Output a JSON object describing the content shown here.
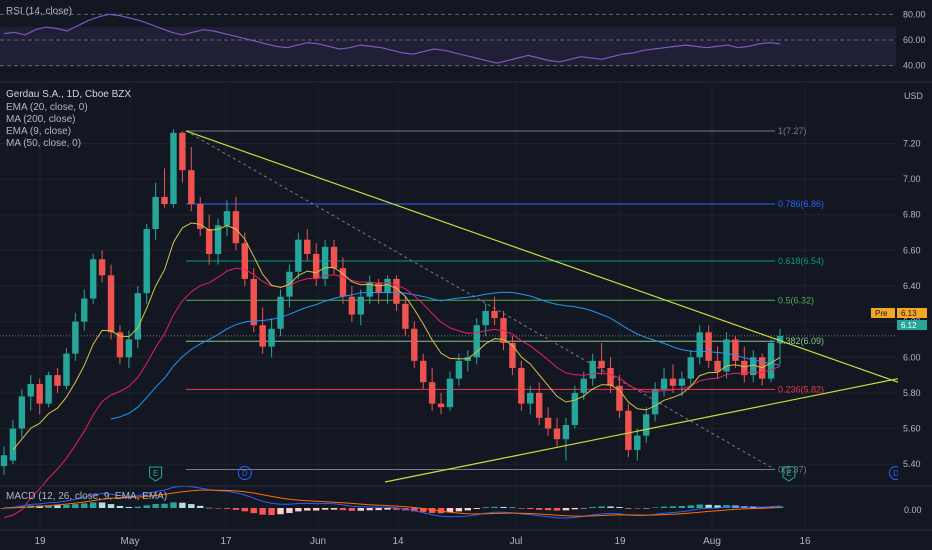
{
  "rsi": {
    "title": "RSI (14, close)",
    "levels": [
      80.0,
      60.0,
      40.0
    ],
    "tick_labels": [
      "80.00",
      "60.00",
      "40.00"
    ],
    "band": [
      40,
      70
    ],
    "ylim": [
      32,
      88
    ],
    "values": [
      65,
      66,
      64,
      68,
      70,
      69,
      67,
      71,
      75,
      78,
      80,
      79,
      77,
      75,
      72,
      69,
      66,
      64,
      66,
      68,
      67,
      65,
      63,
      61,
      59,
      57,
      55,
      54,
      56,
      58,
      57,
      55,
      53,
      54,
      56,
      55,
      54,
      52,
      50,
      49,
      51,
      53,
      52,
      50,
      48,
      46,
      44,
      42,
      44,
      46,
      48,
      46,
      44,
      43,
      45,
      47,
      46,
      45,
      47,
      49,
      50,
      52,
      53,
      54,
      55,
      56,
      55,
      54,
      55,
      56,
      54,
      55,
      57,
      58,
      57
    ]
  },
  "legend": {
    "symbol": "Gerdau S.A., 1D, Cboe BZX",
    "indicators": [
      "EMA (20, close, 0)",
      "MA (200, close)",
      "EMA (9, close)",
      "MA (50, close, 0)"
    ]
  },
  "currency": "USD",
  "badges": {
    "pre_label": "Pre",
    "pre_value": "6.13",
    "last_value": "6.12"
  },
  "chart_data": {
    "type": "candlestick",
    "ylim": [
      5.3,
      7.5
    ],
    "y_ticks": [
      "7.20",
      "7.00",
      "6.80",
      "6.60",
      "6.40",
      "6.20",
      "6.00",
      "5.80",
      "5.60",
      "5.40"
    ],
    "x_tick_labels": [
      "19",
      "May",
      "17",
      "Jun",
      "14",
      "Jul",
      "19",
      "Aug",
      "16"
    ],
    "candles": [
      {
        "o": 5.39,
        "h": 5.5,
        "l": 5.34,
        "c": 5.45
      },
      {
        "o": 5.42,
        "h": 5.65,
        "l": 5.4,
        "c": 5.6
      },
      {
        "o": 5.6,
        "h": 5.82,
        "l": 5.55,
        "c": 5.78
      },
      {
        "o": 5.78,
        "h": 5.9,
        "l": 5.7,
        "c": 5.85
      },
      {
        "o": 5.85,
        "h": 5.88,
        "l": 5.68,
        "c": 5.74
      },
      {
        "o": 5.74,
        "h": 5.92,
        "l": 5.72,
        "c": 5.9
      },
      {
        "o": 5.9,
        "h": 5.94,
        "l": 5.8,
        "c": 5.84
      },
      {
        "o": 5.84,
        "h": 6.05,
        "l": 5.82,
        "c": 6.02
      },
      {
        "o": 6.02,
        "h": 6.25,
        "l": 5.98,
        "c": 6.2
      },
      {
        "o": 6.2,
        "h": 6.38,
        "l": 6.15,
        "c": 6.33
      },
      {
        "o": 6.33,
        "h": 6.58,
        "l": 6.3,
        "c": 6.55
      },
      {
        "o": 6.55,
        "h": 6.6,
        "l": 6.42,
        "c": 6.46
      },
      {
        "o": 6.46,
        "h": 6.52,
        "l": 6.1,
        "c": 6.14
      },
      {
        "o": 6.14,
        "h": 6.18,
        "l": 5.96,
        "c": 6.0
      },
      {
        "o": 6.0,
        "h": 6.15,
        "l": 5.94,
        "c": 6.1
      },
      {
        "o": 6.1,
        "h": 6.4,
        "l": 6.05,
        "c": 6.36
      },
      {
        "o": 6.36,
        "h": 6.75,
        "l": 6.3,
        "c": 6.72
      },
      {
        "o": 6.72,
        "h": 6.98,
        "l": 6.66,
        "c": 6.9
      },
      {
        "o": 6.9,
        "h": 7.06,
        "l": 6.84,
        "c": 6.86
      },
      {
        "o": 6.86,
        "h": 7.28,
        "l": 6.84,
        "c": 7.26
      },
      {
        "o": 7.26,
        "h": 7.27,
        "l": 6.98,
        "c": 7.05
      },
      {
        "o": 7.05,
        "h": 7.18,
        "l": 6.82,
        "c": 6.86
      },
      {
        "o": 6.86,
        "h": 6.9,
        "l": 6.68,
        "c": 6.72
      },
      {
        "o": 6.72,
        "h": 6.8,
        "l": 6.52,
        "c": 6.58
      },
      {
        "o": 6.58,
        "h": 6.78,
        "l": 6.52,
        "c": 6.74
      },
      {
        "o": 6.74,
        "h": 6.88,
        "l": 6.68,
        "c": 6.82
      },
      {
        "o": 6.82,
        "h": 6.9,
        "l": 6.6,
        "c": 6.64
      },
      {
        "o": 6.64,
        "h": 6.7,
        "l": 6.4,
        "c": 6.44
      },
      {
        "o": 6.44,
        "h": 6.5,
        "l": 6.14,
        "c": 6.18
      },
      {
        "o": 6.18,
        "h": 6.28,
        "l": 6.02,
        "c": 6.06
      },
      {
        "o": 6.06,
        "h": 6.22,
        "l": 6.0,
        "c": 6.16
      },
      {
        "o": 6.16,
        "h": 6.38,
        "l": 6.12,
        "c": 6.34
      },
      {
        "o": 6.34,
        "h": 6.52,
        "l": 6.28,
        "c": 6.48
      },
      {
        "o": 6.48,
        "h": 6.7,
        "l": 6.44,
        "c": 6.66
      },
      {
        "o": 6.66,
        "h": 6.72,
        "l": 6.54,
        "c": 6.58
      },
      {
        "o": 6.58,
        "h": 6.64,
        "l": 6.4,
        "c": 6.44
      },
      {
        "o": 6.44,
        "h": 6.66,
        "l": 6.4,
        "c": 6.62
      },
      {
        "o": 6.62,
        "h": 6.66,
        "l": 6.46,
        "c": 6.5
      },
      {
        "o": 6.5,
        "h": 6.56,
        "l": 6.3,
        "c": 6.34
      },
      {
        "o": 6.34,
        "h": 6.4,
        "l": 6.2,
        "c": 6.24
      },
      {
        "o": 6.24,
        "h": 6.38,
        "l": 6.18,
        "c": 6.34
      },
      {
        "o": 6.34,
        "h": 6.46,
        "l": 6.3,
        "c": 6.42
      },
      {
        "o": 6.42,
        "h": 6.44,
        "l": 6.3,
        "c": 6.36
      },
      {
        "o": 6.36,
        "h": 6.46,
        "l": 6.3,
        "c": 6.44
      },
      {
        "o": 6.44,
        "h": 6.46,
        "l": 6.26,
        "c": 6.3
      },
      {
        "o": 6.3,
        "h": 6.34,
        "l": 6.12,
        "c": 6.16
      },
      {
        "o": 6.16,
        "h": 6.2,
        "l": 5.94,
        "c": 5.98
      },
      {
        "o": 5.98,
        "h": 6.02,
        "l": 5.82,
        "c": 5.86
      },
      {
        "o": 5.86,
        "h": 5.94,
        "l": 5.7,
        "c": 5.74
      },
      {
        "o": 5.74,
        "h": 5.8,
        "l": 5.68,
        "c": 5.72
      },
      {
        "o": 5.72,
        "h": 5.92,
        "l": 5.7,
        "c": 5.88
      },
      {
        "o": 5.88,
        "h": 6.02,
        "l": 5.84,
        "c": 5.98
      },
      {
        "o": 5.98,
        "h": 6.04,
        "l": 5.92,
        "c": 6.0
      },
      {
        "o": 6.0,
        "h": 6.22,
        "l": 5.96,
        "c": 6.18
      },
      {
        "o": 6.18,
        "h": 6.3,
        "l": 6.12,
        "c": 6.26
      },
      {
        "o": 6.26,
        "h": 6.34,
        "l": 6.18,
        "c": 6.22
      },
      {
        "o": 6.22,
        "h": 6.26,
        "l": 6.04,
        "c": 6.08
      },
      {
        "o": 6.08,
        "h": 6.12,
        "l": 5.9,
        "c": 5.94
      },
      {
        "o": 5.94,
        "h": 5.98,
        "l": 5.7,
        "c": 5.74
      },
      {
        "o": 5.74,
        "h": 5.84,
        "l": 5.68,
        "c": 5.8
      },
      {
        "o": 5.8,
        "h": 5.86,
        "l": 5.62,
        "c": 5.66
      },
      {
        "o": 5.66,
        "h": 5.72,
        "l": 5.56,
        "c": 5.6
      },
      {
        "o": 5.6,
        "h": 5.66,
        "l": 5.5,
        "c": 5.54
      },
      {
        "o": 5.54,
        "h": 5.66,
        "l": 5.42,
        "c": 5.62
      },
      {
        "o": 5.62,
        "h": 5.84,
        "l": 5.6,
        "c": 5.8
      },
      {
        "o": 5.8,
        "h": 5.92,
        "l": 5.76,
        "c": 5.88
      },
      {
        "o": 5.88,
        "h": 6.02,
        "l": 5.84,
        "c": 5.98
      },
      {
        "o": 5.98,
        "h": 6.08,
        "l": 5.9,
        "c": 5.94
      },
      {
        "o": 5.94,
        "h": 6.0,
        "l": 5.8,
        "c": 5.84
      },
      {
        "o": 5.84,
        "h": 5.9,
        "l": 5.66,
        "c": 5.7
      },
      {
        "o": 5.7,
        "h": 5.74,
        "l": 5.44,
        "c": 5.48
      },
      {
        "o": 5.48,
        "h": 5.6,
        "l": 5.42,
        "c": 5.56
      },
      {
        "o": 5.56,
        "h": 5.72,
        "l": 5.52,
        "c": 5.68
      },
      {
        "o": 5.68,
        "h": 5.86,
        "l": 5.64,
        "c": 5.82
      },
      {
        "o": 5.82,
        "h": 5.94,
        "l": 5.78,
        "c": 5.88
      },
      {
        "o": 5.88,
        "h": 5.96,
        "l": 5.8,
        "c": 5.84
      },
      {
        "o": 5.84,
        "h": 5.92,
        "l": 5.78,
        "c": 5.88
      },
      {
        "o": 5.88,
        "h": 6.04,
        "l": 5.84,
        "c": 6.0
      },
      {
        "o": 6.0,
        "h": 6.18,
        "l": 5.96,
        "c": 6.14
      },
      {
        "o": 6.14,
        "h": 6.18,
        "l": 5.94,
        "c": 5.98
      },
      {
        "o": 5.98,
        "h": 6.06,
        "l": 5.88,
        "c": 5.92
      },
      {
        "o": 5.92,
        "h": 6.14,
        "l": 5.88,
        "c": 6.1
      },
      {
        "o": 6.1,
        "h": 6.12,
        "l": 5.94,
        "c": 5.98
      },
      {
        "o": 5.98,
        "h": 6.06,
        "l": 5.86,
        "c": 5.9
      },
      {
        "o": 5.9,
        "h": 6.04,
        "l": 5.86,
        "c": 6.0
      },
      {
        "o": 6.0,
        "h": 6.02,
        "l": 5.84,
        "c": 5.88
      },
      {
        "o": 5.88,
        "h": 6.1,
        "l": 5.86,
        "c": 6.08
      },
      {
        "o": 6.08,
        "h": 6.16,
        "l": 5.96,
        "c": 6.12
      }
    ],
    "fib_levels": [
      {
        "label": "1(7.27)",
        "value": 7.27,
        "color": "#787b86"
      },
      {
        "label": "0.786(6.86)",
        "value": 6.86,
        "color": "#2962ff"
      },
      {
        "label": "0.618(6.54)",
        "value": 6.54,
        "color": "#089981"
      },
      {
        "label": "0.5(6.32)",
        "value": 6.32,
        "color": "#4caf50"
      },
      {
        "label": "0.382(6.09)",
        "value": 6.09,
        "color": "#81c784"
      },
      {
        "label": "0.236(5.82)",
        "value": 5.82,
        "color": "#f23645"
      },
      {
        "label": "0(5.37)",
        "value": 5.37,
        "color": "#787b86"
      }
    ],
    "markers": [
      {
        "label": "E",
        "index": 17,
        "color": "#26a69a"
      },
      {
        "label": "D",
        "index": 27,
        "color": "#2962ff"
      },
      {
        "label": "E",
        "index": 88,
        "color": "#26a69a"
      },
      {
        "label": "D",
        "index": 100,
        "color": "#2962ff"
      }
    ]
  },
  "macd": {
    "title": "MACD (12, 26, close, 9, EMA, EMA)",
    "tick_label": "0.00"
  },
  "colors": {
    "bull": "#26a69a",
    "bear": "#ef5350",
    "ema20": "#e91e63",
    "ema9": "#d4c34a",
    "ma50": "#2196f3",
    "trend": "#cddc39",
    "pre_badge": "#f5a623",
    "last_badge": "#26a69a"
  }
}
